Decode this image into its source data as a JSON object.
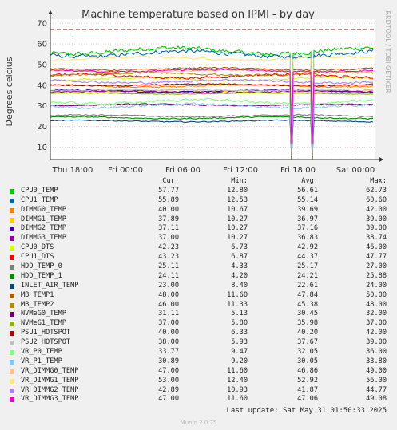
{
  "chart_data": {
    "type": "line",
    "title": "Machine temperature based on IPMI - by day",
    "ylabel": "Degrees celcius",
    "ylim": [
      4,
      72
    ],
    "yticks": [
      10,
      20,
      30,
      40,
      50,
      60,
      70
    ],
    "xticks": [
      "Thu 18:00",
      "Fri 00:00",
      "Fri 06:00",
      "Fri 12:00",
      "Fri 18:00",
      "Sat 00:00"
    ],
    "side_label": "RRDTOOL / TOBI OETIKER",
    "warning_line": 67,
    "columns": [
      "Cur:",
      "Min:",
      "Avg:",
      "Max:"
    ],
    "series": [
      {
        "name": "CPU0_TEMP",
        "color": "#00cc00",
        "cur": "57.77",
        "min": "12.80",
        "avg": "56.61",
        "max": "62.73"
      },
      {
        "name": "CPU1_TEMP",
        "color": "#0066b3",
        "cur": "55.89",
        "min": "12.53",
        "avg": "55.14",
        "max": "60.60"
      },
      {
        "name": "DIMMG0_TEMP",
        "color": "#ff8000",
        "cur": "40.00",
        "min": "10.67",
        "avg": "39.69",
        "max": "42.00"
      },
      {
        "name": "DIMMG1_TEMP",
        "color": "#ffcc00",
        "cur": "37.89",
        "min": "10.27",
        "avg": "36.97",
        "max": "39.00"
      },
      {
        "name": "DIMMG2_TEMP",
        "color": "#330099",
        "cur": "37.11",
        "min": "10.27",
        "avg": "37.16",
        "max": "39.00"
      },
      {
        "name": "DIMMG3_TEMP",
        "color": "#990099",
        "cur": "37.00",
        "min": "10.27",
        "avg": "36.83",
        "max": "38.74"
      },
      {
        "name": "CPU0_DTS",
        "color": "#ccff00",
        "cur": "42.23",
        "min": "6.73",
        "avg": "42.92",
        "max": "46.00"
      },
      {
        "name": "CPU1_DTS",
        "color": "#ff0000",
        "cur": "43.23",
        "min": "6.87",
        "avg": "44.37",
        "max": "47.77"
      },
      {
        "name": "HDD_TEMP_0",
        "color": "#808080",
        "cur": "25.11",
        "min": "4.33",
        "avg": "25.17",
        "max": "27.00"
      },
      {
        "name": "HDD_TEMP_1",
        "color": "#008f00",
        "cur": "24.11",
        "min": "4.20",
        "avg": "24.21",
        "max": "25.88"
      },
      {
        "name": "INLET_AIR_TEMP",
        "color": "#00487d",
        "cur": "23.00",
        "min": "8.40",
        "avg": "22.61",
        "max": "24.00"
      },
      {
        "name": "MB_TEMP1",
        "color": "#b35a00",
        "cur": "48.00",
        "min": "11.60",
        "avg": "47.84",
        "max": "50.00"
      },
      {
        "name": "MB_TEMP2",
        "color": "#b38f00",
        "cur": "46.00",
        "min": "11.33",
        "avg": "45.38",
        "max": "48.00"
      },
      {
        "name": "NVMeG0_TEMP",
        "color": "#6b006b",
        "cur": "31.11",
        "min": "5.13",
        "avg": "30.45",
        "max": "32.00"
      },
      {
        "name": "NVMeG1_TEMP",
        "color": "#8fb300",
        "cur": "37.00",
        "min": "5.80",
        "avg": "35.98",
        "max": "37.00"
      },
      {
        "name": "PSU1_HOTSPOT",
        "color": "#b30000",
        "cur": "40.00",
        "min": "6.33",
        "avg": "40.20",
        "max": "42.00"
      },
      {
        "name": "PSU2_HOTSPOT",
        "color": "#bebebe",
        "cur": "38.00",
        "min": "5.93",
        "avg": "37.67",
        "max": "39.00"
      },
      {
        "name": "VR_P0_TEMP",
        "color": "#80ff80",
        "cur": "33.77",
        "min": "9.47",
        "avg": "32.05",
        "max": "36.00"
      },
      {
        "name": "VR_P1_TEMP",
        "color": "#80c9ff",
        "cur": "30.89",
        "min": "9.20",
        "avg": "30.05",
        "max": "33.80"
      },
      {
        "name": "VR_DIMMG0_TEMP",
        "color": "#ffc080",
        "cur": "47.00",
        "min": "11.60",
        "avg": "46.86",
        "max": "49.00"
      },
      {
        "name": "VR_DIMMG1_TEMP",
        "color": "#ffe680",
        "cur": "53.00",
        "min": "12.40",
        "avg": "52.92",
        "max": "56.00"
      },
      {
        "name": "VR_DIMMG2_TEMP",
        "color": "#aa80ff",
        "cur": "42.89",
        "min": "10.93",
        "avg": "41.87",
        "max": "44.77"
      },
      {
        "name": "VR_DIMMG3_TEMP",
        "color": "#ee00cc",
        "cur": "47.00",
        "min": "11.60",
        "avg": "47.06",
        "max": "49.08"
      }
    ]
  },
  "footer": {
    "last_update": "Last update: Sat May 31 01:50:33 2025",
    "munin_version": "Munin 2.0.75"
  }
}
